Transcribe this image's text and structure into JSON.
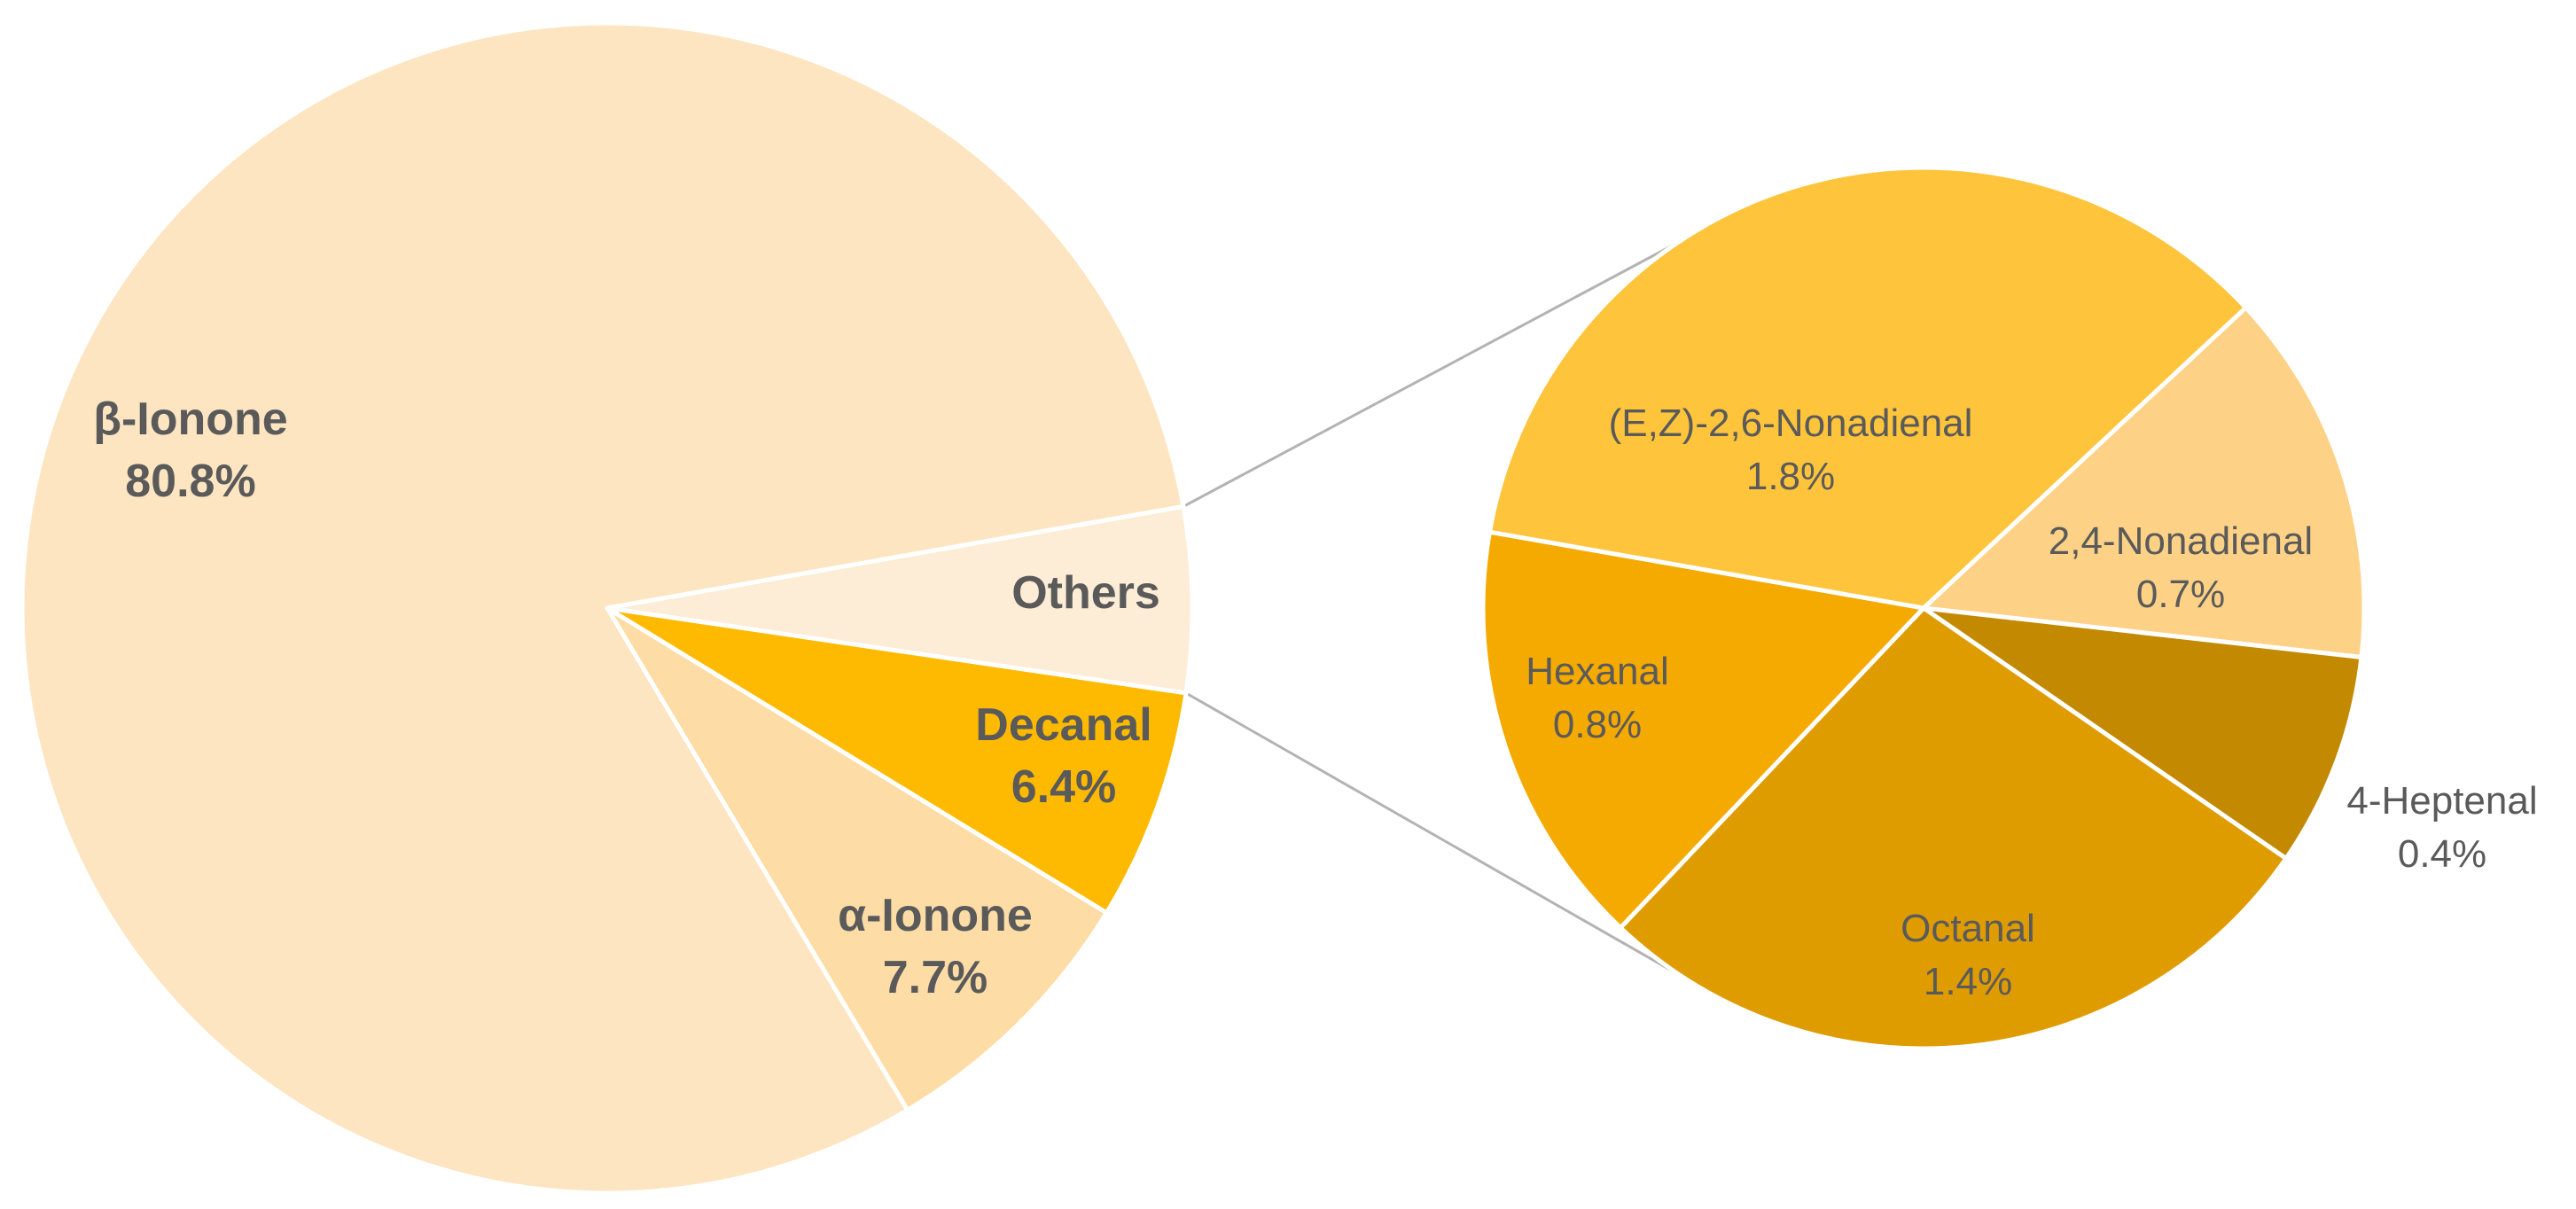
{
  "chart_data": {
    "type": "pie",
    "subtype": "pie-of-pie",
    "colors": {
      "beta_ionone": "#FDE5C1",
      "alpha_ionone": "#FDDCA5",
      "decanal": "#FEBA00",
      "others": "#FDECD6",
      "ez_nonadienal": "#FEC43B",
      "nonadienal_24": "#FDD186",
      "heptenal_4": "#C38900",
      "octanal": "#DE9C00",
      "hexanal": "#F4AA00",
      "connector": "#b3b3b3"
    },
    "main_pie": {
      "slices": [
        {
          "name": "Others",
          "value": 5.1,
          "label": "Others",
          "value_label": "",
          "color_key": "others"
        },
        {
          "name": "Decanal",
          "value": 6.4,
          "label": "Decanal",
          "value_label": "6.4%",
          "color_key": "decanal"
        },
        {
          "name": "α-Ionone",
          "value": 7.7,
          "label": "α-Ionone",
          "value_label": "7.7%",
          "color_key": "alpha_ionone"
        },
        {
          "name": "β-Ionone",
          "value": 80.8,
          "label": "β-Ionone",
          "value_label": "80.8%",
          "color_key": "beta_ionone"
        }
      ]
    },
    "sub_pie": {
      "slices": [
        {
          "name": "2,4-Nonadienal",
          "value": 0.7,
          "label": "2,4-Nonadienal",
          "value_label": "0.7%",
          "color_key": "nonadienal_24"
        },
        {
          "name": "4-Heptenal",
          "value": 0.4,
          "label": "4-Heptenal",
          "value_label": "0.4%",
          "color_key": "heptenal_4"
        },
        {
          "name": "Octanal",
          "value": 1.4,
          "label": "Octanal",
          "value_label": "1.4%",
          "color_key": "octanal"
        },
        {
          "name": "Hexanal",
          "value": 0.8,
          "label": "Hexanal",
          "value_label": "0.8%",
          "color_key": "hexanal"
        },
        {
          "name": "(E,Z)-2,6-Nonadienal",
          "value": 1.8,
          "label": "(E,Z)-2,6-Nonadienal",
          "value_label": "1.8%",
          "color_key": "ez_nonadienal"
        }
      ]
    }
  }
}
